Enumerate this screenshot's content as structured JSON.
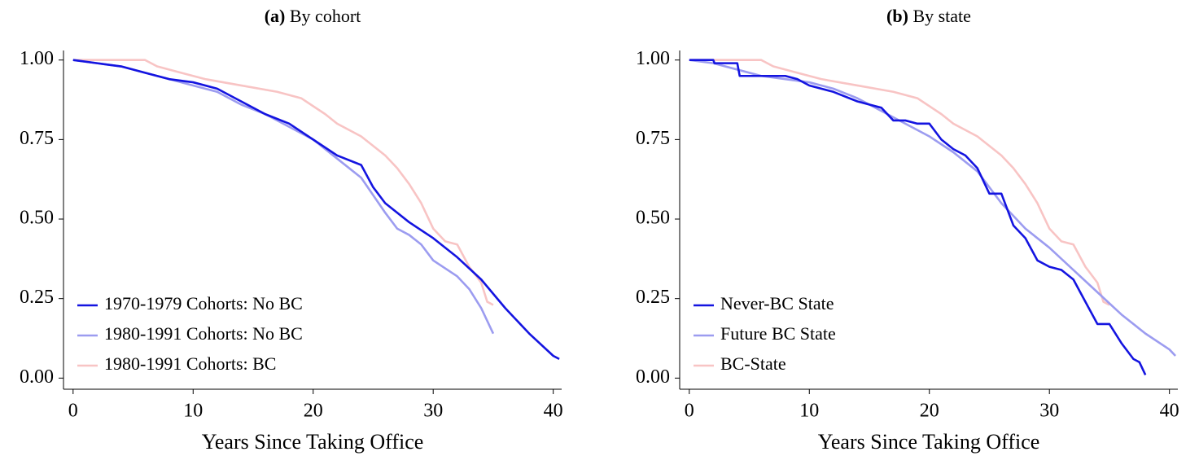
{
  "chart_data": [
    {
      "type": "line",
      "panel": "(a)",
      "title": "By cohort",
      "xlabel": "Years Since Taking Office",
      "xlim": [
        -0.8,
        40.7
      ],
      "xticks": [
        0,
        10,
        20,
        30,
        40
      ],
      "ylim": [
        -0.035,
        1.03
      ],
      "yticks": [
        {
          "value": 0,
          "label": "0.00"
        },
        {
          "value": 0.25,
          "label": "0.25"
        },
        {
          "value": 0.5,
          "label": "0.50"
        },
        {
          "value": 0.75,
          "label": "0.75"
        },
        {
          "value": 1,
          "label": "1.00"
        }
      ],
      "legend": "lower left",
      "series": [
        {
          "name": "1970-1979 Cohorts: No BC",
          "color": "#1414e0",
          "x": [
            0,
            2,
            4,
            6,
            8,
            10,
            12,
            14,
            16,
            18,
            20,
            22,
            24,
            25,
            26,
            28,
            30,
            32,
            34,
            36,
            38,
            40,
            40.5
          ],
          "values": [
            1.0,
            0.99,
            0.98,
            0.96,
            0.94,
            0.93,
            0.91,
            0.87,
            0.83,
            0.8,
            0.75,
            0.7,
            0.67,
            0.6,
            0.55,
            0.49,
            0.44,
            0.38,
            0.31,
            0.22,
            0.14,
            0.07,
            0.06
          ]
        },
        {
          "name": "1980-1991 Cohorts: No BC",
          "color": "#9c9cf0",
          "x": [
            0,
            2,
            4,
            6,
            8,
            10,
            12,
            14,
            16,
            18,
            20,
            22,
            24,
            26,
            27,
            28,
            29,
            30,
            32,
            33,
            34,
            35
          ],
          "values": [
            1.0,
            0.99,
            0.98,
            0.96,
            0.94,
            0.92,
            0.9,
            0.86,
            0.83,
            0.79,
            0.75,
            0.69,
            0.63,
            0.52,
            0.47,
            0.45,
            0.42,
            0.37,
            0.32,
            0.28,
            0.22,
            0.14
          ]
        },
        {
          "name": "1980-1991 Cohorts: BC",
          "color": "#f8c4c4",
          "x": [
            0,
            2,
            4,
            6,
            7,
            9,
            11,
            14,
            17,
            19,
            21,
            22,
            24,
            26,
            27,
            28,
            29,
            30,
            31,
            32,
            33,
            34,
            34.5,
            35
          ],
          "values": [
            1.0,
            1.0,
            1.0,
            1.0,
            0.98,
            0.96,
            0.94,
            0.92,
            0.9,
            0.88,
            0.83,
            0.8,
            0.76,
            0.7,
            0.66,
            0.61,
            0.55,
            0.47,
            0.43,
            0.42,
            0.35,
            0.3,
            0.24,
            0.23
          ]
        }
      ]
    },
    {
      "type": "line",
      "panel": "(b)",
      "title": "By state",
      "xlabel": "Years Since Taking Office",
      "xlim": [
        -0.8,
        40.7
      ],
      "xticks": [
        0,
        10,
        20,
        30,
        40
      ],
      "ylim": [
        -0.035,
        1.03
      ],
      "yticks": [
        {
          "value": 0,
          "label": "0.00"
        },
        {
          "value": 0.25,
          "label": "0.25"
        },
        {
          "value": 0.5,
          "label": "0.50"
        },
        {
          "value": 0.75,
          "label": "0.75"
        },
        {
          "value": 1,
          "label": "1.00"
        }
      ],
      "legend": "lower left",
      "series": [
        {
          "name": "Never-BC State",
          "color": "#1414e0",
          "x": [
            0,
            2,
            2.1,
            4,
            4.2,
            8,
            9,
            10,
            12,
            14,
            16,
            17,
            18,
            19,
            20,
            21,
            22,
            23,
            24,
            25,
            26,
            27,
            28,
            29,
            30,
            31,
            32,
            33,
            34,
            35,
            36,
            37,
            37.5,
            38
          ],
          "values": [
            1.0,
            1.0,
            0.99,
            0.99,
            0.95,
            0.95,
            0.94,
            0.92,
            0.9,
            0.87,
            0.85,
            0.81,
            0.81,
            0.8,
            0.8,
            0.75,
            0.72,
            0.7,
            0.66,
            0.58,
            0.58,
            0.48,
            0.44,
            0.37,
            0.35,
            0.34,
            0.31,
            0.24,
            0.17,
            0.17,
            0.11,
            0.06,
            0.05,
            0.01
          ]
        },
        {
          "name": "Future BC State",
          "color": "#9c9cf0",
          "x": [
            0,
            2,
            4,
            6,
            8,
            10,
            12,
            14,
            16,
            18,
            20,
            22,
            24,
            26,
            28,
            30,
            32,
            34,
            36,
            38,
            40,
            40.5
          ],
          "values": [
            1.0,
            0.99,
            0.97,
            0.95,
            0.94,
            0.93,
            0.91,
            0.88,
            0.84,
            0.8,
            0.76,
            0.71,
            0.65,
            0.55,
            0.47,
            0.41,
            0.34,
            0.27,
            0.2,
            0.14,
            0.09,
            0.07
          ]
        },
        {
          "name": "BC-State",
          "color": "#f8c4c4",
          "x": [
            0,
            2,
            4,
            6,
            7,
            9,
            11,
            14,
            17,
            19,
            21,
            22,
            24,
            26,
            27,
            28,
            29,
            30,
            31,
            32,
            33,
            34,
            34.5,
            35
          ],
          "values": [
            1.0,
            1.0,
            1.0,
            1.0,
            0.98,
            0.96,
            0.94,
            0.92,
            0.9,
            0.88,
            0.83,
            0.8,
            0.76,
            0.7,
            0.66,
            0.61,
            0.55,
            0.47,
            0.43,
            0.42,
            0.35,
            0.3,
            0.24,
            0.23
          ]
        }
      ]
    }
  ]
}
